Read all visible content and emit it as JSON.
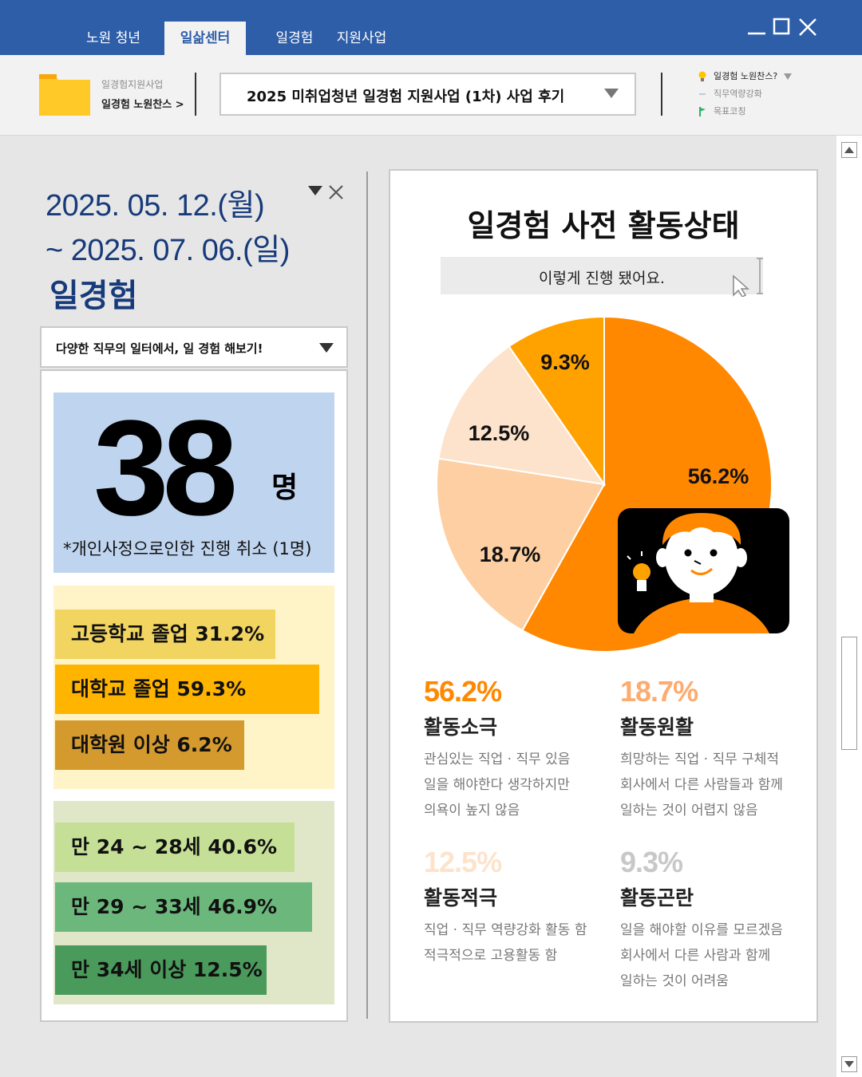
{
  "window": {
    "tabs": [
      {
        "label": "노원 청년",
        "active": false
      },
      {
        "label": "일삶센터",
        "active": true
      },
      {
        "label": "일경험",
        "active": false
      },
      {
        "label": "지원사업",
        "active": false
      }
    ]
  },
  "toolbar": {
    "crumb_top": "일경험지원사업",
    "crumb_main": "일경험 노원찬스 >",
    "select_value": "2025 미취업청년 일경험 지원사업 (1차) 사업 후기",
    "side_menu": [
      "일경험 노원찬스?",
      "직무역량강화",
      "목표코칭"
    ]
  },
  "left": {
    "date_line1": "2025. 05. 12.(월)",
    "date_line2": "~ 2025. 07. 06.(일)",
    "event_name": "일경험",
    "dropdown": "다양한 직무의 일터에서, 일 경험 해보기!",
    "count": "38",
    "count_unit": "명",
    "count_note": "*개인사정으로인한 진행 취소 (1명)",
    "education": [
      {
        "label": "고등학교 졸업 31.2%",
        "value": 31.2,
        "color": "#f2d560"
      },
      {
        "label": "대학교 졸업 59.3%",
        "value": 59.3,
        "color": "#ffb400"
      },
      {
        "label": "대학원 이상 6.2%",
        "value": 6.2,
        "color": "#d49a2e"
      }
    ],
    "age": [
      {
        "label": "만 24 ~ 28세 40.6%",
        "value": 40.6,
        "color": "#c5df96"
      },
      {
        "label": "만 29 ~ 33세 46.9%",
        "value": 46.9,
        "color": "#6cb87c"
      },
      {
        "label": "만 34세 이상 12.5%",
        "value": 12.5,
        "color": "#4a9a5c"
      }
    ]
  },
  "chart_data": {
    "type": "pie",
    "title": "일경험 사전 활동상태",
    "subtitle": "이렇게 진행 됐어요.",
    "slices": [
      {
        "label": "56.2%",
        "name": "활동소극",
        "value": 56.2,
        "color": "#ff8800"
      },
      {
        "label": "18.7%",
        "name": "활동원활",
        "value": 18.7,
        "color": "#fdcfa3"
      },
      {
        "label": "12.5%",
        "name": "활동적극",
        "value": 12.5,
        "color": "#fde3cc"
      },
      {
        "label": "9.3%",
        "name": "활동곤란",
        "value": 9.3,
        "color": "#ffa200"
      }
    ]
  },
  "legend": [
    {
      "pct": "56.2%",
      "label": "활동소극",
      "desc": "관심있는 직업 · 직무 있음\n일을 해야한다 생각하지만\n의욕이 높지 않음",
      "color": "#ff8800"
    },
    {
      "pct": "18.7%",
      "label": "활동원활",
      "desc": "희망하는 직업 · 직무 구체적\n회사에서 다른 사람들과 함께\n일하는 것이 어렵지 않음",
      "color": "#fdab6e"
    },
    {
      "pct": "12.5%",
      "label": "활동적극",
      "desc": "직업 · 직무 역량강화 활동 함\n적극적으로 고용활동 함",
      "color": "#fde3cc"
    },
    {
      "pct": "9.3%",
      "label": "활동곤란",
      "desc": "일을 해야할 이유를 모르겠음\n회사에서 다른 사람과 함께\n일하는 것이 어려움",
      "color": "#c8c8c8"
    }
  ]
}
